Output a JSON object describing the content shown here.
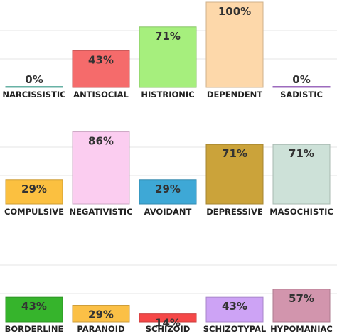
{
  "chart_data": [
    {
      "type": "bar",
      "categories": [
        "NARCISSISTIC",
        "ANTISOCIAL",
        "HISTRIONIC",
        "DEPENDENT",
        "SADISTIC"
      ],
      "values": [
        0,
        43,
        71,
        100,
        0
      ],
      "value_labels": [
        "0%",
        "43%",
        "71%",
        "100%",
        "0%"
      ],
      "colors": [
        "#7fd9c9",
        "#f56b6b",
        "#a6ef7d",
        "#fdd8aa",
        "#c083e8"
      ],
      "ylim": [
        0,
        100
      ],
      "grid": true
    },
    {
      "type": "bar",
      "categories": [
        "COMPULSIVE",
        "NEGATIVISTIC",
        "AVOIDANT",
        "DEPRESSIVE",
        "MASOCHISTIC"
      ],
      "values": [
        29,
        86,
        29,
        71,
        71
      ],
      "value_labels": [
        "29%",
        "86%",
        "29%",
        "71%",
        "71%"
      ],
      "colors": [
        "#fbc040",
        "#fbcdf0",
        "#3ea8d6",
        "#cba33a",
        "#cde1d8"
      ],
      "ylim": [
        0,
        100
      ],
      "grid": true
    },
    {
      "type": "bar",
      "categories": [
        "BORDERLINE",
        "PARANOID",
        "SCHIZOID",
        "SCHIZOTYPAL",
        "HYPOMANIAC"
      ],
      "values": [
        43,
        29,
        14,
        43,
        57
      ],
      "value_labels": [
        "43%",
        "29%",
        "14%",
        "43%",
        "57%"
      ],
      "colors": [
        "#36b42c",
        "#fbc046",
        "#f54848",
        "#cda3f5",
        "#d295ad"
      ],
      "ylim": [
        0,
        100
      ],
      "grid": true
    }
  ]
}
